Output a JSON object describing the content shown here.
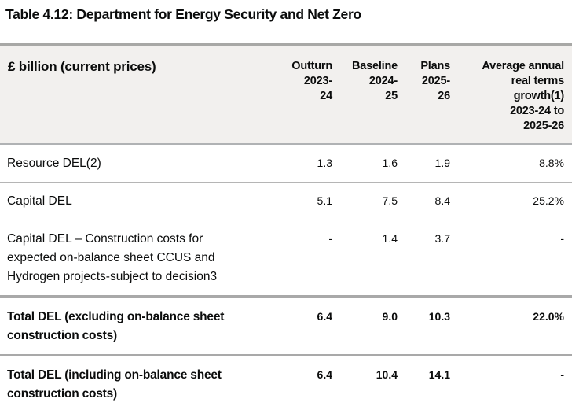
{
  "title": "Table 4.12: Department for Energy Security and Net Zero",
  "colors": {
    "text": "#0b0c0c",
    "header_background": "#f2f0ee",
    "thick_border": "#a9a9a9",
    "thin_border": "#b5b5b5",
    "page_background": "#ffffff"
  },
  "table": {
    "header": {
      "row_label": "£ billion (current prices)",
      "columns": [
        {
          "label": [
            "Outturn",
            "2023-",
            "24"
          ]
        },
        {
          "label": [
            "Baseline",
            "2024-",
            "25"
          ]
        },
        {
          "label": [
            "Plans",
            "2025-",
            "26"
          ]
        },
        {
          "label": [
            "Average annual",
            "real terms",
            "growth(1)",
            "2023-24 to",
            "2025-26"
          ]
        }
      ]
    },
    "rows": [
      {
        "label": "Resource DEL(2)",
        "values": [
          "1.3",
          "1.6",
          "1.9",
          "8.8%"
        ],
        "bold": false
      },
      {
        "label": "Capital DEL",
        "values": [
          "5.1",
          "7.5",
          "8.4",
          "25.2%"
        ],
        "bold": false
      },
      {
        "label": [
          "Capital DEL – Construction costs for",
          "expected on-balance sheet CCUS and",
          "Hydrogen projects-subject to decision3"
        ],
        "values": [
          "-",
          "1.4",
          "3.7",
          "-"
        ],
        "bold": false
      },
      {
        "label": [
          "Total DEL (excluding on-balance sheet",
          "construction costs)"
        ],
        "values": [
          "6.4",
          "9.0",
          "10.3",
          "22.0%"
        ],
        "bold": true
      },
      {
        "label": [
          "Total DEL (including on-balance sheet",
          "construction costs)"
        ],
        "values": [
          "6.4",
          "10.4",
          "14.1",
          "-"
        ],
        "bold": true
      }
    ]
  }
}
